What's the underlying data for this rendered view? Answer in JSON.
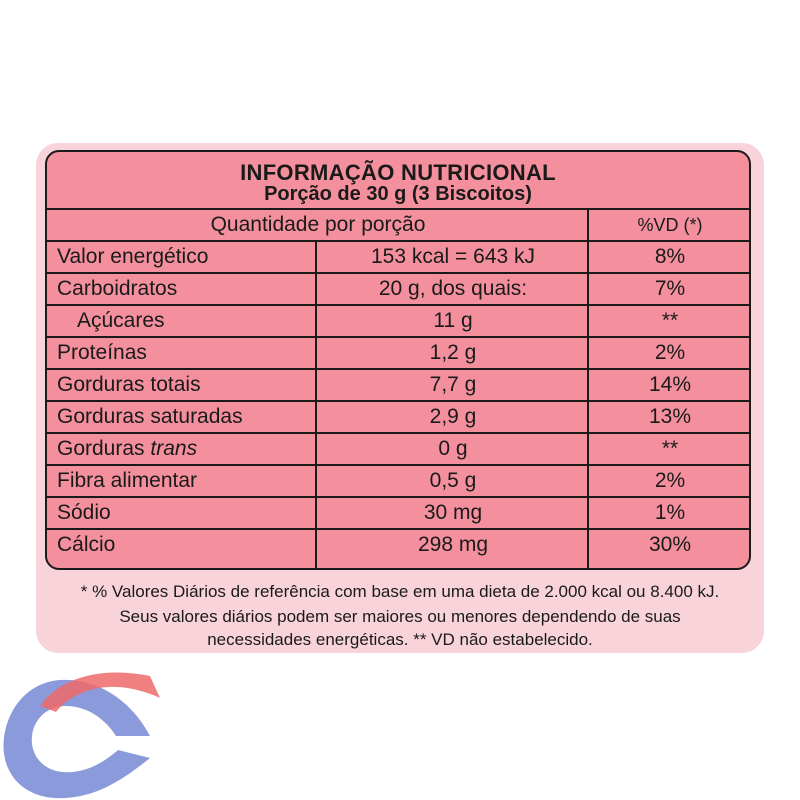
{
  "header": {
    "title": "INFORMAÇÃO NUTRICIONAL",
    "serving": "Porção de 30 g (3 Biscoitos)"
  },
  "columns": {
    "quantity": "Quantidade por porção",
    "dv": "%VD (*)"
  },
  "rows": [
    {
      "name": "Valor energético",
      "amount": "153 kcal = 643 kJ",
      "dv": "8%"
    },
    {
      "name": "Carboidratos",
      "amount": "20 g, dos quais:",
      "dv": "7%"
    },
    {
      "name": "Açúcares",
      "amount": "11 g",
      "dv": "**"
    },
    {
      "name": "Proteínas",
      "amount": "1,2 g",
      "dv": "2%"
    },
    {
      "name": "Gorduras totais",
      "amount": "7,7 g",
      "dv": "14%"
    },
    {
      "name": "Gorduras saturadas",
      "amount": "2,9 g",
      "dv": "13%"
    },
    {
      "name": "Gorduras",
      "name_italic": "trans",
      "amount": "0 g",
      "dv": "**"
    },
    {
      "name": "Fibra alimentar",
      "amount": "0,5 g",
      "dv": "2%"
    },
    {
      "name": "Sódio",
      "amount": "30 mg",
      "dv": "1%"
    },
    {
      "name": "Cálcio",
      "amount": "298 mg",
      "dv": "30%"
    }
  ],
  "footnote": {
    "line1": "* % Valores Diários de referência com base em uma dieta de 2.000 kcal ou 8.400 kJ.",
    "line2": "Seus valores diários podem ser maiores ou menores dependendo de suas",
    "line3": "necessidades energéticas. ** VD não estabelecido."
  },
  "colors": {
    "panel": "#f4909d",
    "outer": "#f8d3da",
    "logo_blue": "#7e8fd6",
    "logo_red": "#ef6a6a"
  },
  "icons": {
    "logo": "store-logo-icon"
  }
}
